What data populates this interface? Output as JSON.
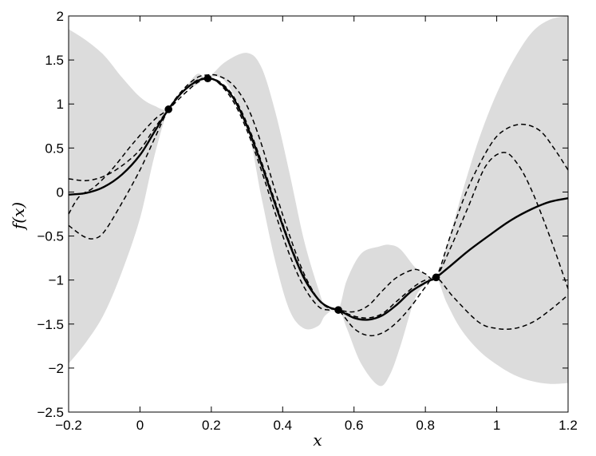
{
  "chart_data": {
    "type": "line",
    "xlabel": "x",
    "ylabel": "f(x)",
    "xlim": [
      -0.2,
      1.2
    ],
    "ylim": [
      -2.5,
      2
    ],
    "x_ticks": [
      -0.2,
      0,
      0.2,
      0.4,
      0.6,
      0.8,
      1,
      1.2
    ],
    "x_tick_labels": [
      "−0.2",
      "0",
      "0.2",
      "0.4",
      "0.6",
      "0.8",
      "1",
      "1.2"
    ],
    "y_ticks": [
      2,
      1.5,
      1,
      0.5,
      0,
      -0.5,
      -1,
      -1.5,
      -2,
      -2.5
    ],
    "y_tick_labels": [
      "2",
      "1.5",
      "1",
      "0.5",
      "0",
      "−0.5",
      "−1",
      "−1.5",
      "−2",
      "−2.5"
    ],
    "grid": false,
    "legend": "none",
    "colors": {
      "band": "#dcdcdc",
      "mean": "#000000",
      "samples": "#000000",
      "points": "#000000",
      "axes": "#000000"
    },
    "confidence_band": {
      "x": [
        -0.2,
        -0.15,
        -0.1,
        -0.05,
        0.0,
        0.04,
        0.08,
        0.12,
        0.16,
        0.19,
        0.24,
        0.3,
        0.34,
        0.38,
        0.42,
        0.46,
        0.5,
        0.52,
        0.556,
        0.58,
        0.62,
        0.67,
        0.7,
        0.73,
        0.77,
        0.8,
        0.83,
        0.86,
        0.9,
        0.95,
        1.0,
        1.05,
        1.1,
        1.15,
        1.2
      ],
      "upper": [
        1.85,
        1.72,
        1.55,
        1.3,
        1.08,
        0.98,
        0.94,
        1.14,
        1.34,
        1.3,
        1.48,
        1.58,
        1.42,
        0.9,
        0.2,
        -0.55,
        -1.1,
        -1.3,
        -1.33,
        -1.0,
        -0.7,
        -0.62,
        -0.6,
        -0.65,
        -0.85,
        -0.93,
        -0.97,
        -0.62,
        -0.05,
        0.6,
        1.12,
        1.52,
        1.82,
        1.96,
        2.0
      ],
      "lower": [
        -1.95,
        -1.7,
        -1.38,
        -0.9,
        -0.3,
        0.4,
        0.94,
        1.13,
        1.22,
        1.3,
        1.25,
        0.75,
        -0.05,
        -0.8,
        -1.35,
        -1.55,
        -1.52,
        -1.4,
        -1.33,
        -1.55,
        -1.95,
        -2.2,
        -2.08,
        -1.75,
        -1.22,
        -1.05,
        -0.97,
        -1.26,
        -1.56,
        -1.8,
        -1.96,
        -2.08,
        -2.15,
        -2.18,
        -2.17
      ]
    },
    "mean": {
      "x": [
        -0.2,
        -0.15,
        -0.1,
        -0.05,
        0.0,
        0.04,
        0.08,
        0.12,
        0.16,
        0.19,
        0.22,
        0.26,
        0.3,
        0.34,
        0.38,
        0.42,
        0.46,
        0.5,
        0.53,
        0.556,
        0.6,
        0.64,
        0.68,
        0.72,
        0.76,
        0.8,
        0.83,
        0.87,
        0.92,
        0.98,
        1.04,
        1.1,
        1.15,
        1.2
      ],
      "y": [
        -0.03,
        -0.01,
        0.06,
        0.2,
        0.42,
        0.68,
        0.94,
        1.14,
        1.26,
        1.29,
        1.25,
        1.08,
        0.75,
        0.32,
        -0.15,
        -0.6,
        -0.98,
        -1.22,
        -1.31,
        -1.34,
        -1.43,
        -1.45,
        -1.4,
        -1.28,
        -1.13,
        -1.03,
        -0.97,
        -0.84,
        -0.67,
        -0.49,
        -0.32,
        -0.19,
        -0.11,
        -0.07
      ]
    },
    "samples": [
      {
        "x": [
          -0.2,
          -0.15,
          -0.1,
          -0.05,
          0.0,
          0.04,
          0.08,
          0.12,
          0.16,
          0.19,
          0.22,
          0.26,
          0.3,
          0.34,
          0.38,
          0.42,
          0.46,
          0.5,
          0.53,
          0.556,
          0.6,
          0.64,
          0.68,
          0.72,
          0.77,
          0.8,
          0.83,
          0.87,
          0.92,
          0.98,
          1.02,
          1.07,
          1.12,
          1.16,
          1.2
        ],
        "y": [
          0.15,
          0.13,
          0.18,
          0.3,
          0.48,
          0.72,
          0.94,
          1.14,
          1.27,
          1.29,
          1.26,
          1.1,
          0.78,
          0.35,
          -0.12,
          -0.58,
          -0.96,
          -1.22,
          -1.31,
          -1.34,
          -1.36,
          -1.29,
          -1.12,
          -0.97,
          -0.88,
          -0.93,
          -0.97,
          -0.5,
          0.05,
          0.52,
          0.7,
          0.77,
          0.7,
          0.5,
          0.25
        ]
      },
      {
        "x": [
          -0.2,
          -0.16,
          -0.13,
          -0.1,
          -0.05,
          0.0,
          0.04,
          0.08,
          0.12,
          0.16,
          0.19,
          0.22,
          0.26,
          0.3,
          0.34,
          0.38,
          0.42,
          0.46,
          0.5,
          0.53,
          0.556,
          0.6,
          0.64,
          0.68,
          0.72,
          0.77,
          0.8,
          0.83,
          0.87,
          0.92,
          0.97,
          1.02,
          1.06,
          1.1,
          1.15,
          1.2
        ],
        "y": [
          -0.38,
          -0.5,
          -0.53,
          -0.45,
          -0.12,
          0.25,
          0.6,
          0.94,
          1.16,
          1.3,
          1.33,
          1.32,
          1.22,
          0.98,
          0.55,
          0.0,
          -0.5,
          -0.93,
          -1.22,
          -1.32,
          -1.34,
          -1.41,
          -1.43,
          -1.38,
          -1.24,
          -1.07,
          -1.0,
          -0.97,
          -0.64,
          -0.17,
          0.3,
          0.45,
          0.31,
          0.0,
          -0.52,
          -1.1
        ]
      },
      {
        "x": [
          -0.2,
          -0.17,
          -0.13,
          -0.08,
          -0.02,
          0.04,
          0.08,
          0.12,
          0.16,
          0.19,
          0.22,
          0.26,
          0.3,
          0.34,
          0.38,
          0.42,
          0.46,
          0.5,
          0.53,
          0.556,
          0.6,
          0.64,
          0.68,
          0.72,
          0.76,
          0.8,
          0.83,
          0.88,
          0.95,
          1.0,
          1.05,
          1.1,
          1.15,
          1.2
        ],
        "y": [
          -0.25,
          -0.05,
          0.05,
          0.25,
          0.55,
          0.82,
          0.94,
          1.1,
          1.24,
          1.29,
          1.24,
          1.04,
          0.7,
          0.25,
          -0.25,
          -0.72,
          -1.08,
          -1.3,
          -1.34,
          -1.34,
          -1.55,
          -1.63,
          -1.6,
          -1.48,
          -1.3,
          -1.08,
          -0.97,
          -1.2,
          -1.48,
          -1.55,
          -1.55,
          -1.48,
          -1.34,
          -1.17
        ]
      }
    ],
    "observations": {
      "x": [
        0.08,
        0.19,
        0.556,
        0.83
      ],
      "y": [
        0.94,
        1.29,
        -1.34,
        -0.97
      ]
    }
  }
}
